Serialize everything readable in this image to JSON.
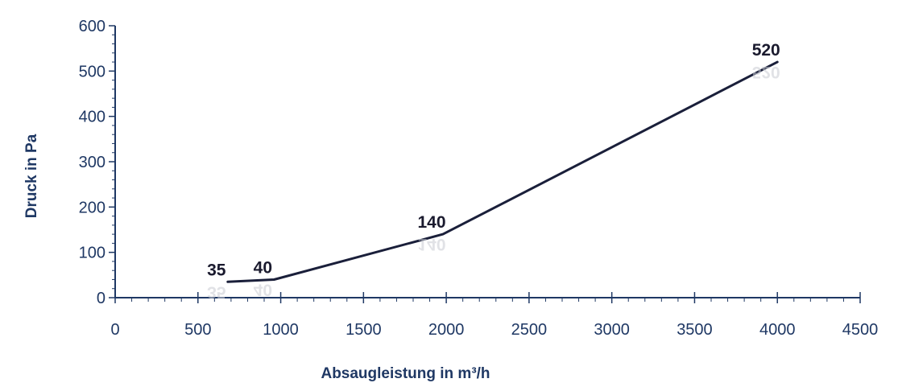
{
  "chart_data": {
    "type": "line",
    "title": "",
    "xlabel": "Absaugleistung in m³/h",
    "ylabel": "Druck in Pa",
    "xlim": [
      0,
      4500
    ],
    "ylim": [
      0,
      600
    ],
    "x_ticks": [
      "0",
      "500",
      "1000",
      "1500",
      "2000",
      "2500",
      "3000",
      "3500",
      "4000",
      "4500"
    ],
    "y_ticks": [
      "0",
      "100",
      "200",
      "300",
      "400",
      "500",
      "600"
    ],
    "grid": false,
    "legend": "none",
    "line_color": "#1a1f3a",
    "axis_color": "#1f3864",
    "series": [
      {
        "x": [
          680,
          960,
          1980,
          4000
        ],
        "y": [
          35,
          40,
          140,
          520
        ],
        "labels": [
          "35",
          "40",
          "140",
          "520"
        ]
      }
    ]
  }
}
